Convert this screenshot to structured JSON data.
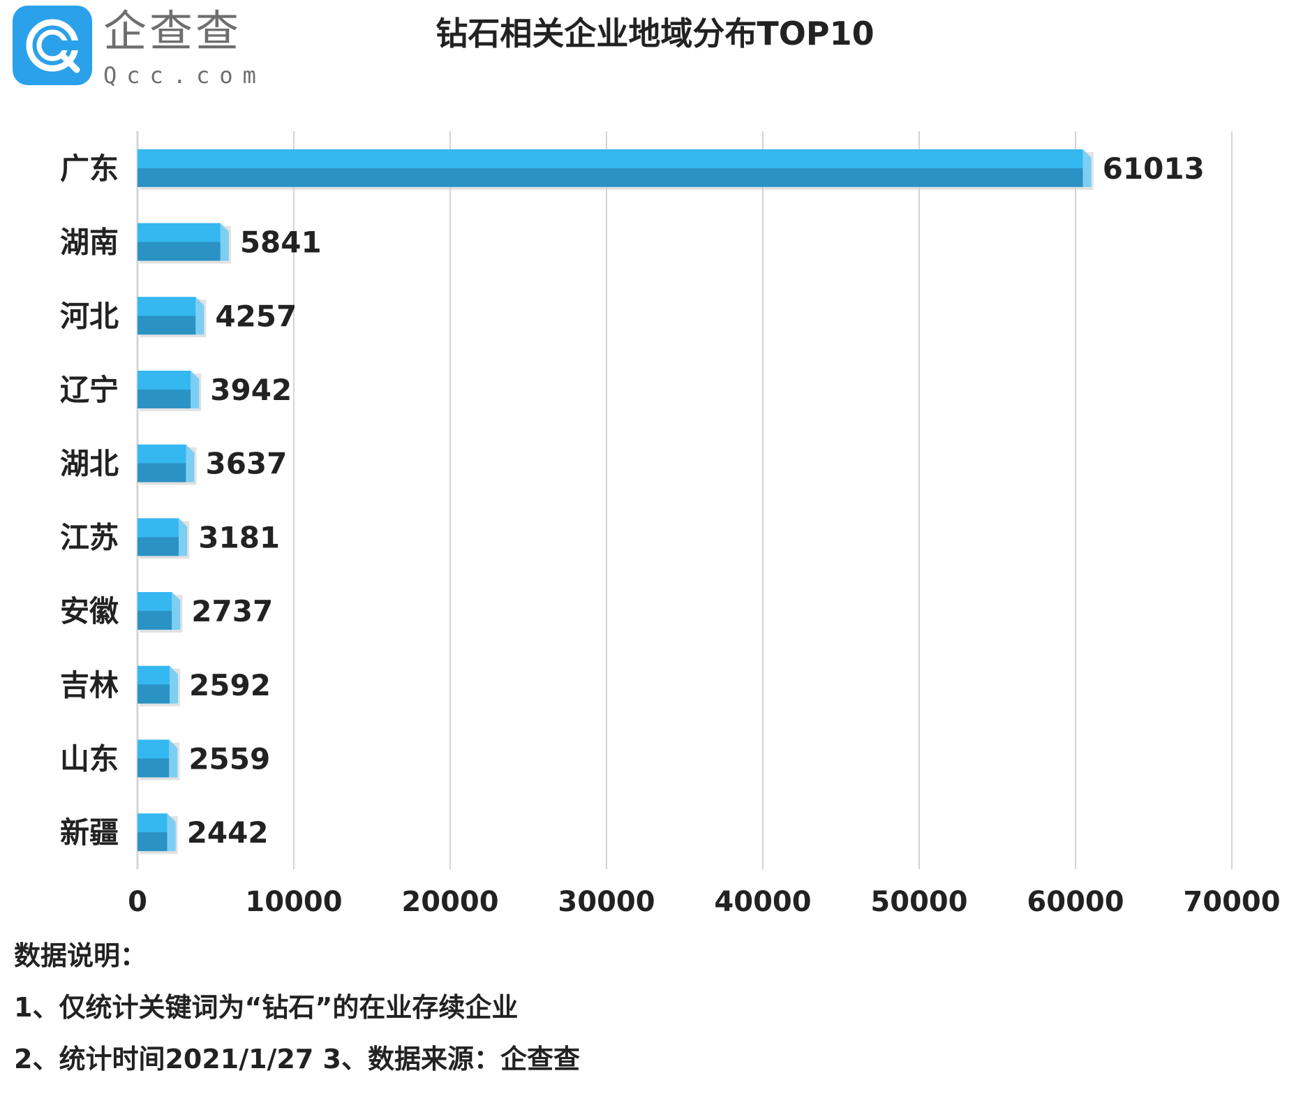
{
  "logo": {
    "brand_cn": "企查查",
    "brand_en": "Qcc.com",
    "badge_color": "#2aa1ea"
  },
  "chart_data": {
    "type": "bar",
    "orientation": "horizontal",
    "title": "钻石相关企业地域分布TOP10",
    "categories": [
      "广东",
      "湖南",
      "河北",
      "辽宁",
      "湖北",
      "江苏",
      "安徽",
      "吉林",
      "山东",
      "新疆"
    ],
    "values": [
      61013,
      5841,
      4257,
      3942,
      3637,
      3181,
      2737,
      2592,
      2559,
      2442
    ],
    "value_labels": [
      "61013",
      "5841",
      "4257",
      "3942",
      "3637",
      "3181",
      "2737",
      "2592",
      "2559",
      "2442"
    ],
    "xlim": [
      0,
      70000
    ],
    "x_ticks": [
      0,
      10000,
      20000,
      30000,
      40000,
      50000,
      60000,
      70000
    ],
    "x_tick_labels": [
      "0",
      "10000",
      "20000",
      "30000",
      "40000",
      "50000",
      "60000",
      "70000"
    ],
    "xlabel": "",
    "ylabel": "",
    "grid": "vertical",
    "legend": "none",
    "colors": {
      "bar_top": "#35b7f0",
      "bar_bottom": "#2b92c4",
      "bar_end": "#7ccff3",
      "grid": "#d4d4d4"
    }
  },
  "notes": {
    "heading": "数据说明：",
    "line1": "1、仅统计关键词为“钻石”的在业存续企业",
    "line2": "2、统计时间2021/1/27    3、数据来源：企查查"
  }
}
